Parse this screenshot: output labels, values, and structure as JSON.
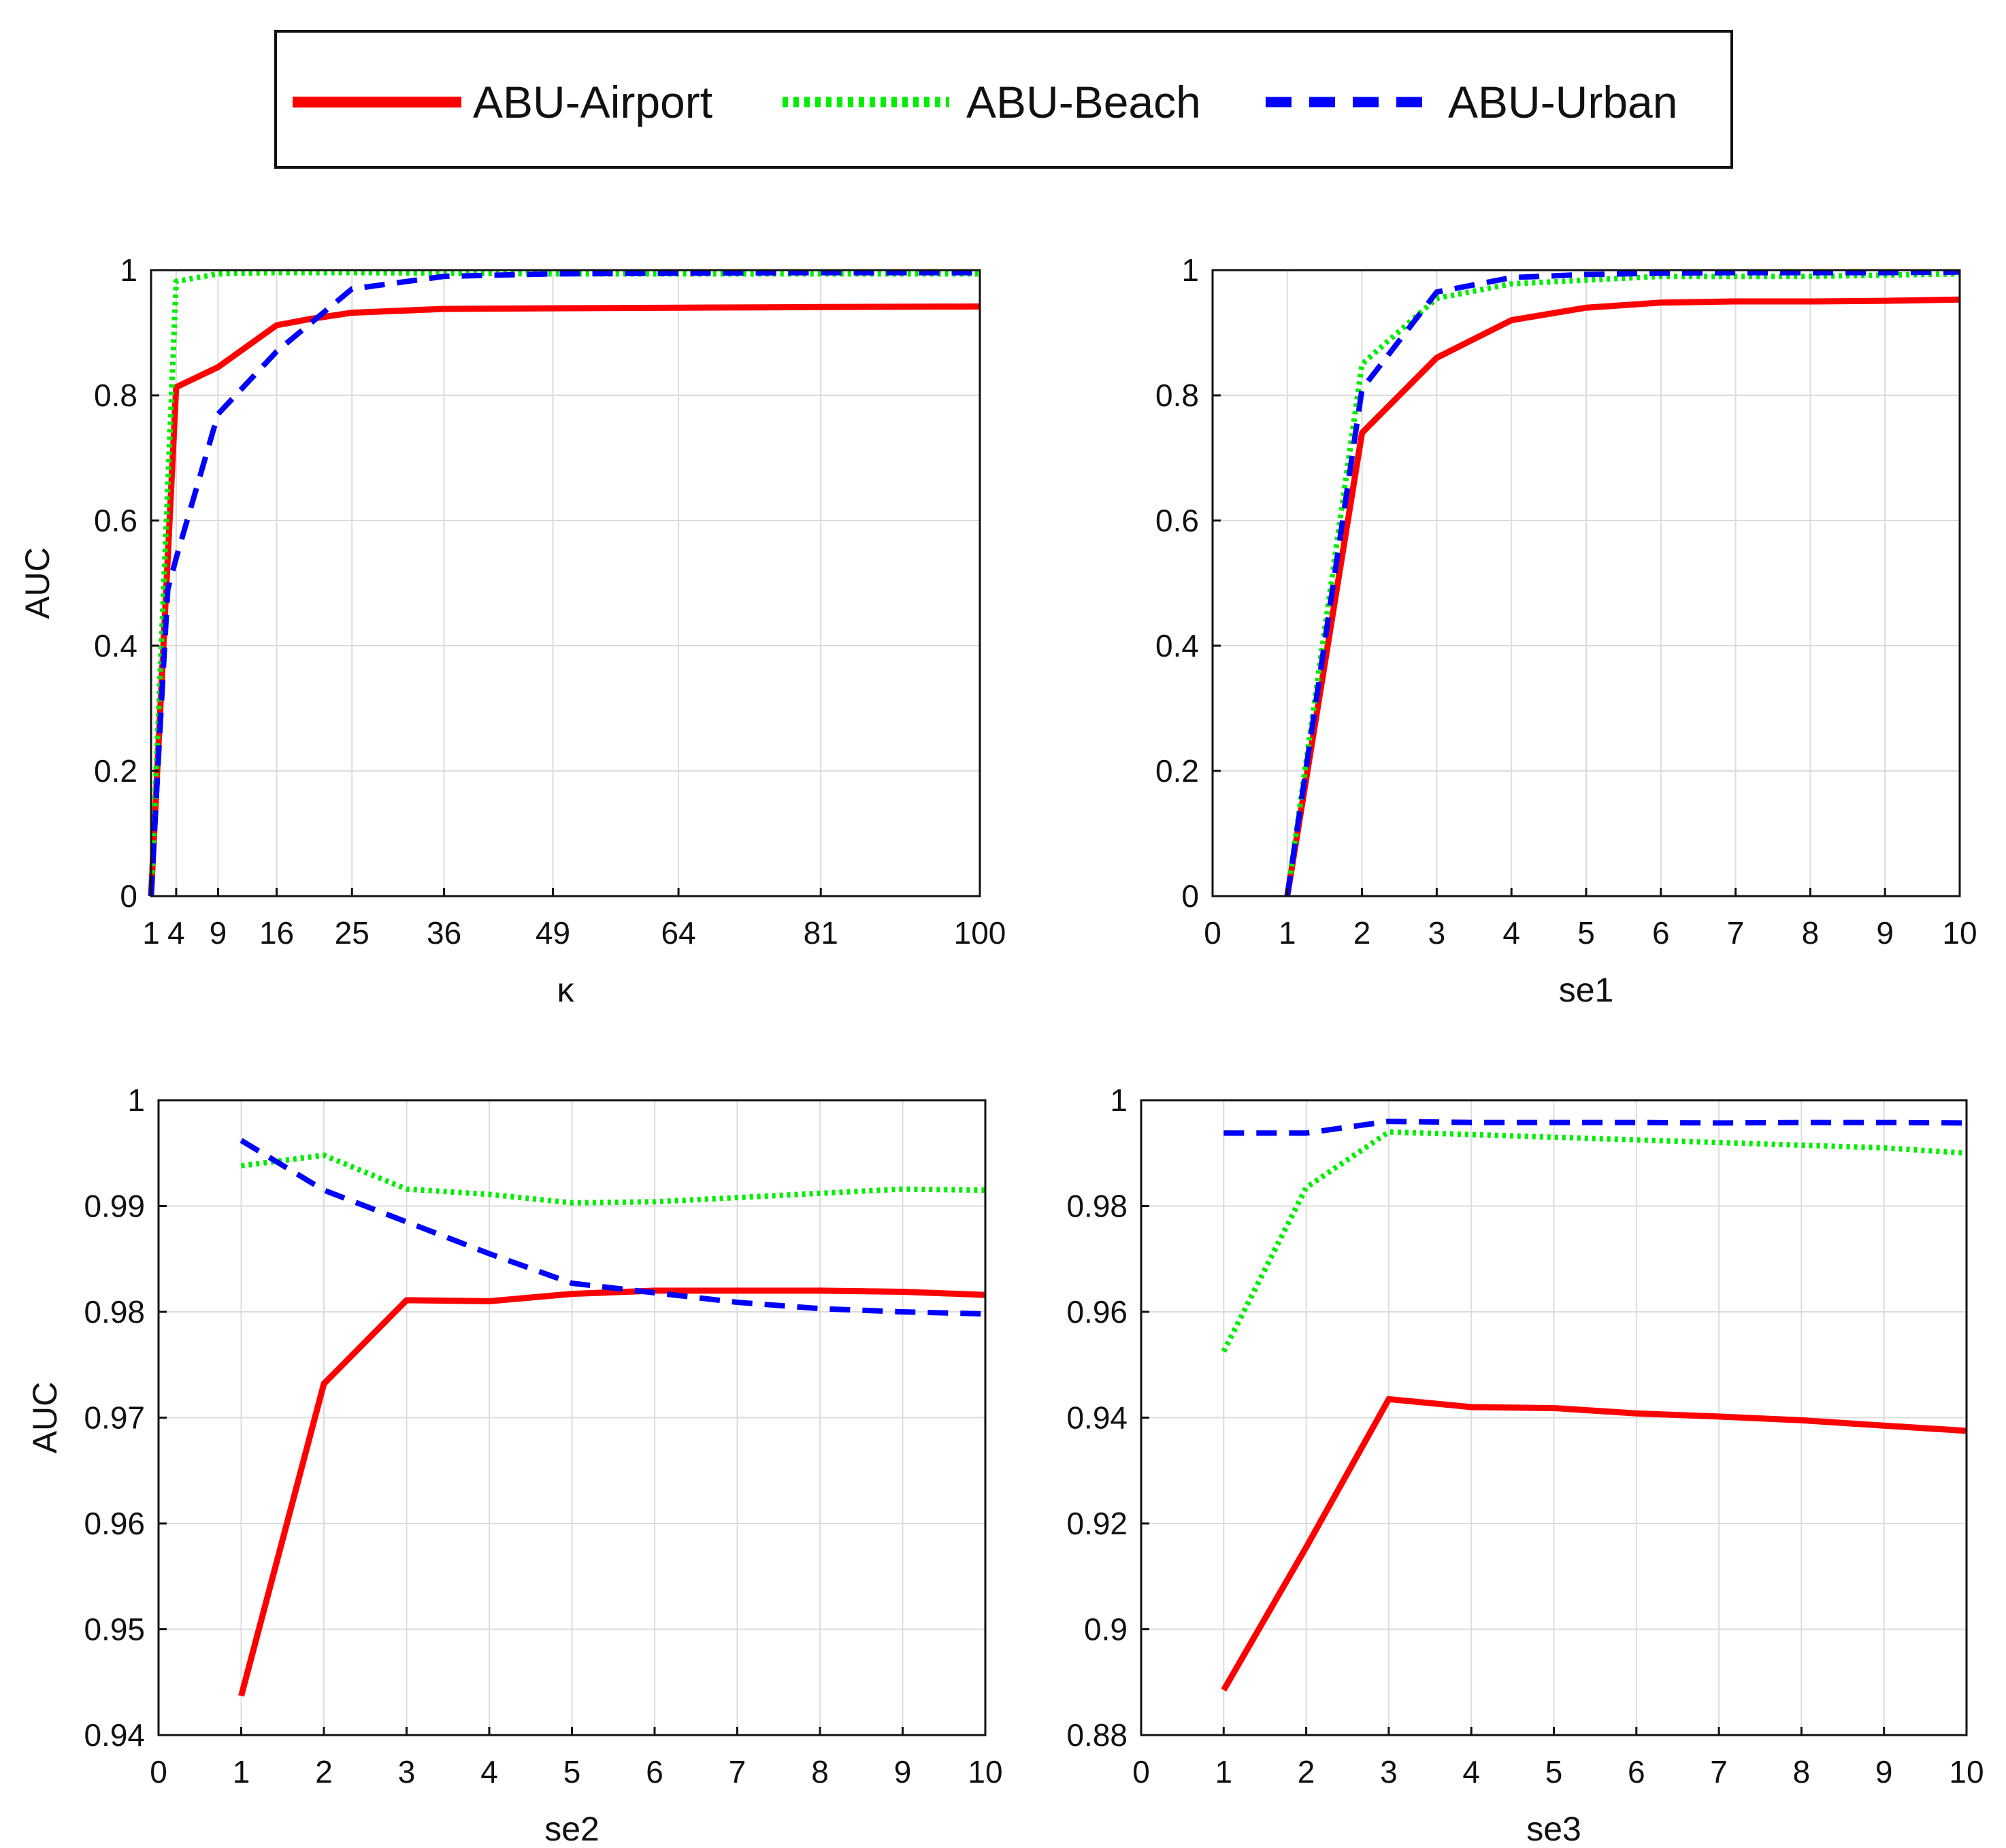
{
  "colors": {
    "airport": "#ff0000",
    "beach": "#00ee00",
    "urban": "#0000ff",
    "grid": "#dcdcdc",
    "frame": "#111111"
  },
  "legend": {
    "entries": [
      {
        "key": "airport",
        "label": "ABU-Airport",
        "style": "solid"
      },
      {
        "key": "beach",
        "label": "ABU-Beach",
        "style": "dotted"
      },
      {
        "key": "urban",
        "label": "ABU-Urban",
        "style": "dashed"
      }
    ]
  },
  "chart_data": [
    {
      "type": "line",
      "id": "kappa",
      "xlabel": "κ",
      "ylabel": "AUC",
      "xlim": [
        1,
        100
      ],
      "ylim": [
        0,
        1
      ],
      "xticks": [
        1,
        4,
        9,
        16,
        25,
        36,
        49,
        64,
        81,
        100
      ],
      "xtick_labels": [
        "1",
        "4",
        "9",
        "16",
        "25",
        "36",
        "49",
        "64",
        "81",
        "100"
      ],
      "yticks": [
        0,
        0.2,
        0.4,
        0.6,
        0.8,
        1
      ],
      "ytick_labels": [
        "0",
        "0.2",
        "0.4",
        "0.6",
        "0.8",
        "1"
      ],
      "series": [
        {
          "name": "ABU-Airport",
          "key": "airport",
          "x": [
            1,
            4,
            9,
            16,
            20,
            25,
            36,
            49,
            64,
            81,
            100
          ],
          "values": [
            0.0,
            0.813,
            0.845,
            0.912,
            0.922,
            0.932,
            0.938,
            0.939,
            0.94,
            0.941,
            0.942
          ]
        },
        {
          "name": "ABU-Beach",
          "key": "beach",
          "x": [
            1,
            4,
            9,
            16,
            25,
            36,
            49,
            64,
            81,
            100
          ],
          "values": [
            0.0,
            0.982,
            0.994,
            0.996,
            0.996,
            0.995,
            0.994,
            0.994,
            0.994,
            0.994
          ]
        },
        {
          "name": "ABU-Urban",
          "key": "urban",
          "x": [
            1,
            2,
            3,
            4,
            9,
            16,
            25,
            36,
            49,
            64,
            81,
            100
          ],
          "values": [
            0.0,
            0.25,
            0.49,
            0.54,
            0.77,
            0.87,
            0.97,
            0.99,
            0.994,
            0.995,
            0.996,
            0.996
          ]
        }
      ]
    },
    {
      "type": "line",
      "id": "se1",
      "xlabel": "se1",
      "ylabel": "",
      "xlim": [
        0,
        10
      ],
      "ylim": [
        0,
        1
      ],
      "xticks": [
        0,
        1,
        2,
        3,
        4,
        5,
        6,
        7,
        8,
        9,
        10
      ],
      "xtick_labels": [
        "0",
        "1",
        "2",
        "3",
        "4",
        "5",
        "6",
        "7",
        "8",
        "9",
        "10"
      ],
      "yticks": [
        0,
        0.2,
        0.4,
        0.6,
        0.8,
        1
      ],
      "ytick_labels": [
        "0",
        "0.2",
        "0.4",
        "0.6",
        "0.8",
        "1"
      ],
      "series": [
        {
          "name": "ABU-Airport",
          "key": "airport",
          "x": [
            1,
            2,
            3,
            4,
            5,
            6,
            7,
            8,
            9,
            10
          ],
          "values": [
            0.0,
            0.74,
            0.86,
            0.92,
            0.94,
            0.948,
            0.95,
            0.95,
            0.951,
            0.953
          ]
        },
        {
          "name": "ABU-Beach",
          "key": "beach",
          "x": [
            1,
            2,
            3,
            4,
            5,
            6,
            7,
            8,
            9,
            10
          ],
          "values": [
            0.0,
            0.85,
            0.955,
            0.978,
            0.984,
            0.99,
            0.99,
            0.99,
            0.992,
            0.994
          ]
        },
        {
          "name": "ABU-Urban",
          "key": "urban",
          "x": [
            1,
            2,
            3,
            4,
            5,
            6,
            7,
            8,
            9,
            10
          ],
          "values": [
            0.0,
            0.81,
            0.965,
            0.988,
            0.993,
            0.995,
            0.996,
            0.996,
            0.996,
            0.997
          ]
        }
      ]
    },
    {
      "type": "line",
      "id": "se2",
      "xlabel": "se2",
      "ylabel": "AUC",
      "xlim": [
        0,
        10
      ],
      "ylim": [
        0.94,
        1
      ],
      "xticks": [
        0,
        1,
        2,
        3,
        4,
        5,
        6,
        7,
        8,
        9,
        10
      ],
      "xtick_labels": [
        "0",
        "1",
        "2",
        "3",
        "4",
        "5",
        "6",
        "7",
        "8",
        "9",
        "10"
      ],
      "yticks": [
        0.94,
        0.95,
        0.96,
        0.97,
        0.98,
        0.99,
        1
      ],
      "ytick_labels": [
        "0.94",
        "0.95",
        "0.96",
        "0.97",
        "0.98",
        "0.99",
        "1"
      ],
      "series": [
        {
          "name": "ABU-Airport",
          "key": "airport",
          "x": [
            1,
            2,
            3,
            4,
            5,
            6,
            7,
            8,
            9,
            10
          ],
          "values": [
            0.9437,
            0.9732,
            0.9811,
            0.981,
            0.9817,
            0.982,
            0.982,
            0.982,
            0.9819,
            0.9816
          ]
        },
        {
          "name": "ABU-Beach",
          "key": "beach",
          "x": [
            1,
            2,
            3,
            4,
            5,
            6,
            7,
            8,
            9,
            10
          ],
          "values": [
            0.9938,
            0.9948,
            0.9916,
            0.9911,
            0.9903,
            0.9904,
            0.9908,
            0.9912,
            0.9916,
            0.9915
          ]
        },
        {
          "name": "ABU-Urban",
          "key": "urban",
          "x": [
            1,
            2,
            3,
            4,
            5,
            6,
            7,
            8,
            9,
            10
          ],
          "values": [
            0.9962,
            0.9915,
            0.9885,
            0.9855,
            0.9827,
            0.9818,
            0.9809,
            0.9803,
            0.98,
            0.9798
          ]
        }
      ]
    },
    {
      "type": "line",
      "id": "se3",
      "xlabel": "se3",
      "ylabel": "",
      "xlim": [
        0,
        10
      ],
      "ylim": [
        0.88,
        1
      ],
      "xticks": [
        0,
        1,
        2,
        3,
        4,
        5,
        6,
        7,
        8,
        9,
        10
      ],
      "xtick_labels": [
        "0",
        "1",
        "2",
        "3",
        "4",
        "5",
        "6",
        "7",
        "8",
        "9",
        "10"
      ],
      "yticks": [
        0.88,
        0.9,
        0.92,
        0.94,
        0.96,
        0.98,
        1
      ],
      "ytick_labels": [
        "0.88",
        "0.9",
        "0.92",
        "0.94",
        "0.96",
        "0.98",
        "1"
      ],
      "series": [
        {
          "name": "ABU-Airport",
          "key": "airport",
          "x": [
            1,
            2,
            3,
            4,
            5,
            6,
            7,
            8,
            9,
            10
          ],
          "values": [
            0.8885,
            0.9155,
            0.9435,
            0.942,
            0.9418,
            0.9408,
            0.9402,
            0.9395,
            0.9385,
            0.9375
          ]
        },
        {
          "name": "ABU-Beach",
          "key": "beach",
          "x": [
            1,
            2,
            3,
            4,
            5,
            6,
            7,
            8,
            9,
            10
          ],
          "values": [
            0.9525,
            0.9835,
            0.994,
            0.9935,
            0.993,
            0.9925,
            0.992,
            0.9915,
            0.991,
            0.99
          ]
        },
        {
          "name": "ABU-Urban",
          "key": "urban",
          "x": [
            1,
            2,
            3,
            4,
            5,
            6,
            7,
            8,
            9,
            10
          ],
          "values": [
            0.9938,
            0.9938,
            0.996,
            0.9958,
            0.9958,
            0.9958,
            0.9957,
            0.9958,
            0.9958,
            0.9957
          ]
        }
      ]
    }
  ]
}
